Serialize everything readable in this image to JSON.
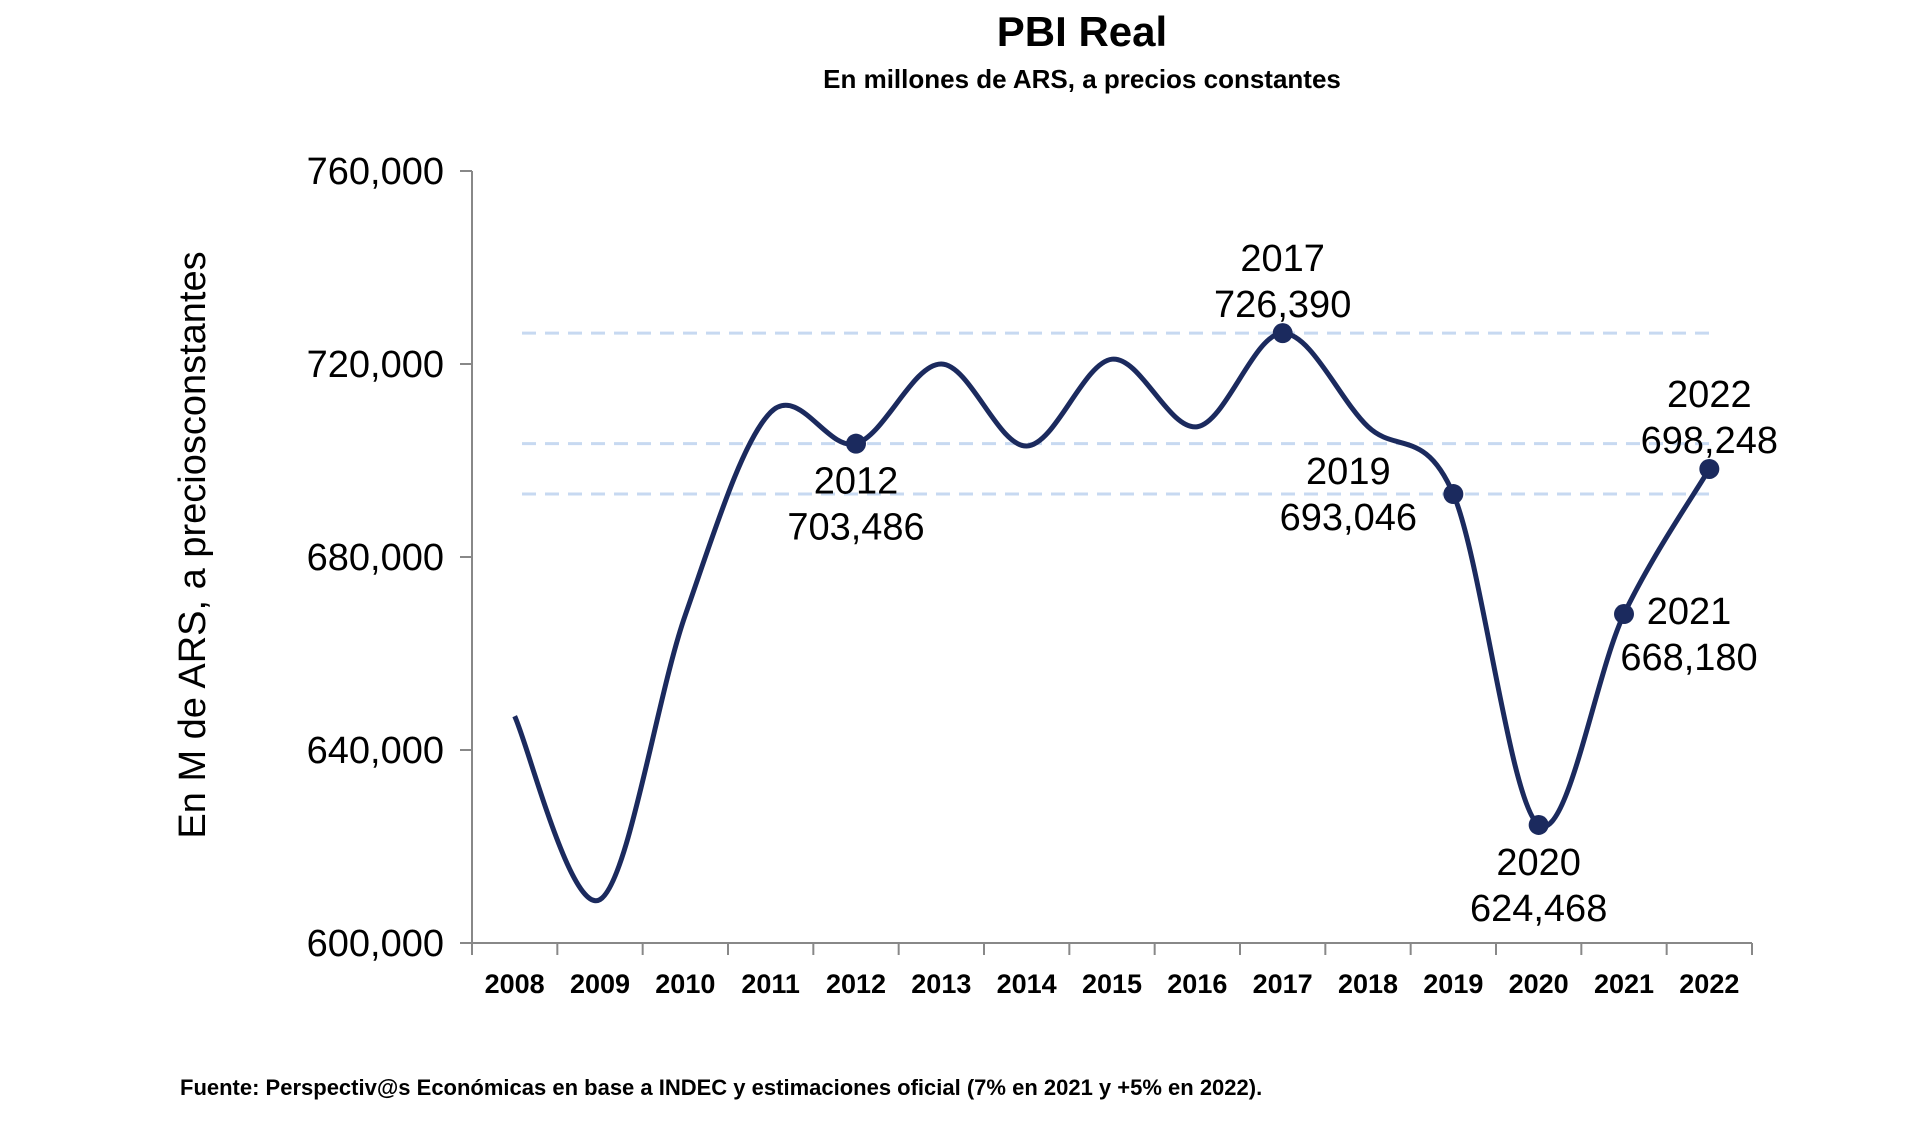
{
  "chart_data": {
    "type": "line",
    "title": "PBI Real",
    "subtitle": "En millones de ARS, a precios constantes",
    "xlabel": "",
    "ylabel": "En M de ARS, a preciosconstantes",
    "categories": [
      "2008",
      "2009",
      "2010",
      "2011",
      "2012",
      "2013",
      "2014",
      "2015",
      "2016",
      "2017",
      "2018",
      "2019",
      "2020",
      "2021",
      "2022"
    ],
    "series": [
      {
        "values": [
          647000,
          609000,
          668000,
          710000,
          703486,
          720000,
          703000,
          721000,
          707000,
          726390,
          707000,
          693046,
          624468,
          668180,
          698248
        ]
      }
    ],
    "ylim": [
      600000,
      760000
    ],
    "yticks": [
      "600,000",
      "640,000",
      "680,000",
      "720,000",
      "760,000"
    ],
    "yticks_values": [
      600000,
      640000,
      680000,
      720000,
      760000
    ],
    "reference_lines": [
      726390,
      703486,
      693046
    ],
    "markers": [
      {
        "year": "2012",
        "value": 703486,
        "label_year": "2012",
        "label_value": "703,486",
        "position": "below"
      },
      {
        "year": "2017",
        "value": 726390,
        "label_year": "2017",
        "label_value": "726,390",
        "position": "above"
      },
      {
        "year": "2019",
        "value": 693046,
        "label_year": "2019",
        "label_value": "693,046",
        "position": "left"
      },
      {
        "year": "2020",
        "value": 624468,
        "label_year": "2020",
        "label_value": "624,468",
        "position": "below"
      },
      {
        "year": "2021",
        "value": 668180,
        "label_year": "2021",
        "label_value": "668,180",
        "position": "right"
      },
      {
        "year": "2022",
        "value": 698248,
        "label_year": "2022",
        "label_value": "698,248",
        "position": "above"
      }
    ],
    "grid": false,
    "colors": {
      "line": "#1b2a5e",
      "reference": "#c7d9f1",
      "axis": "#888888"
    },
    "source": "Fuente: Perspectiv@s Económicas en base a INDEC y estimaciones oficial (7% en 2021 y +5% en 2022)."
  }
}
